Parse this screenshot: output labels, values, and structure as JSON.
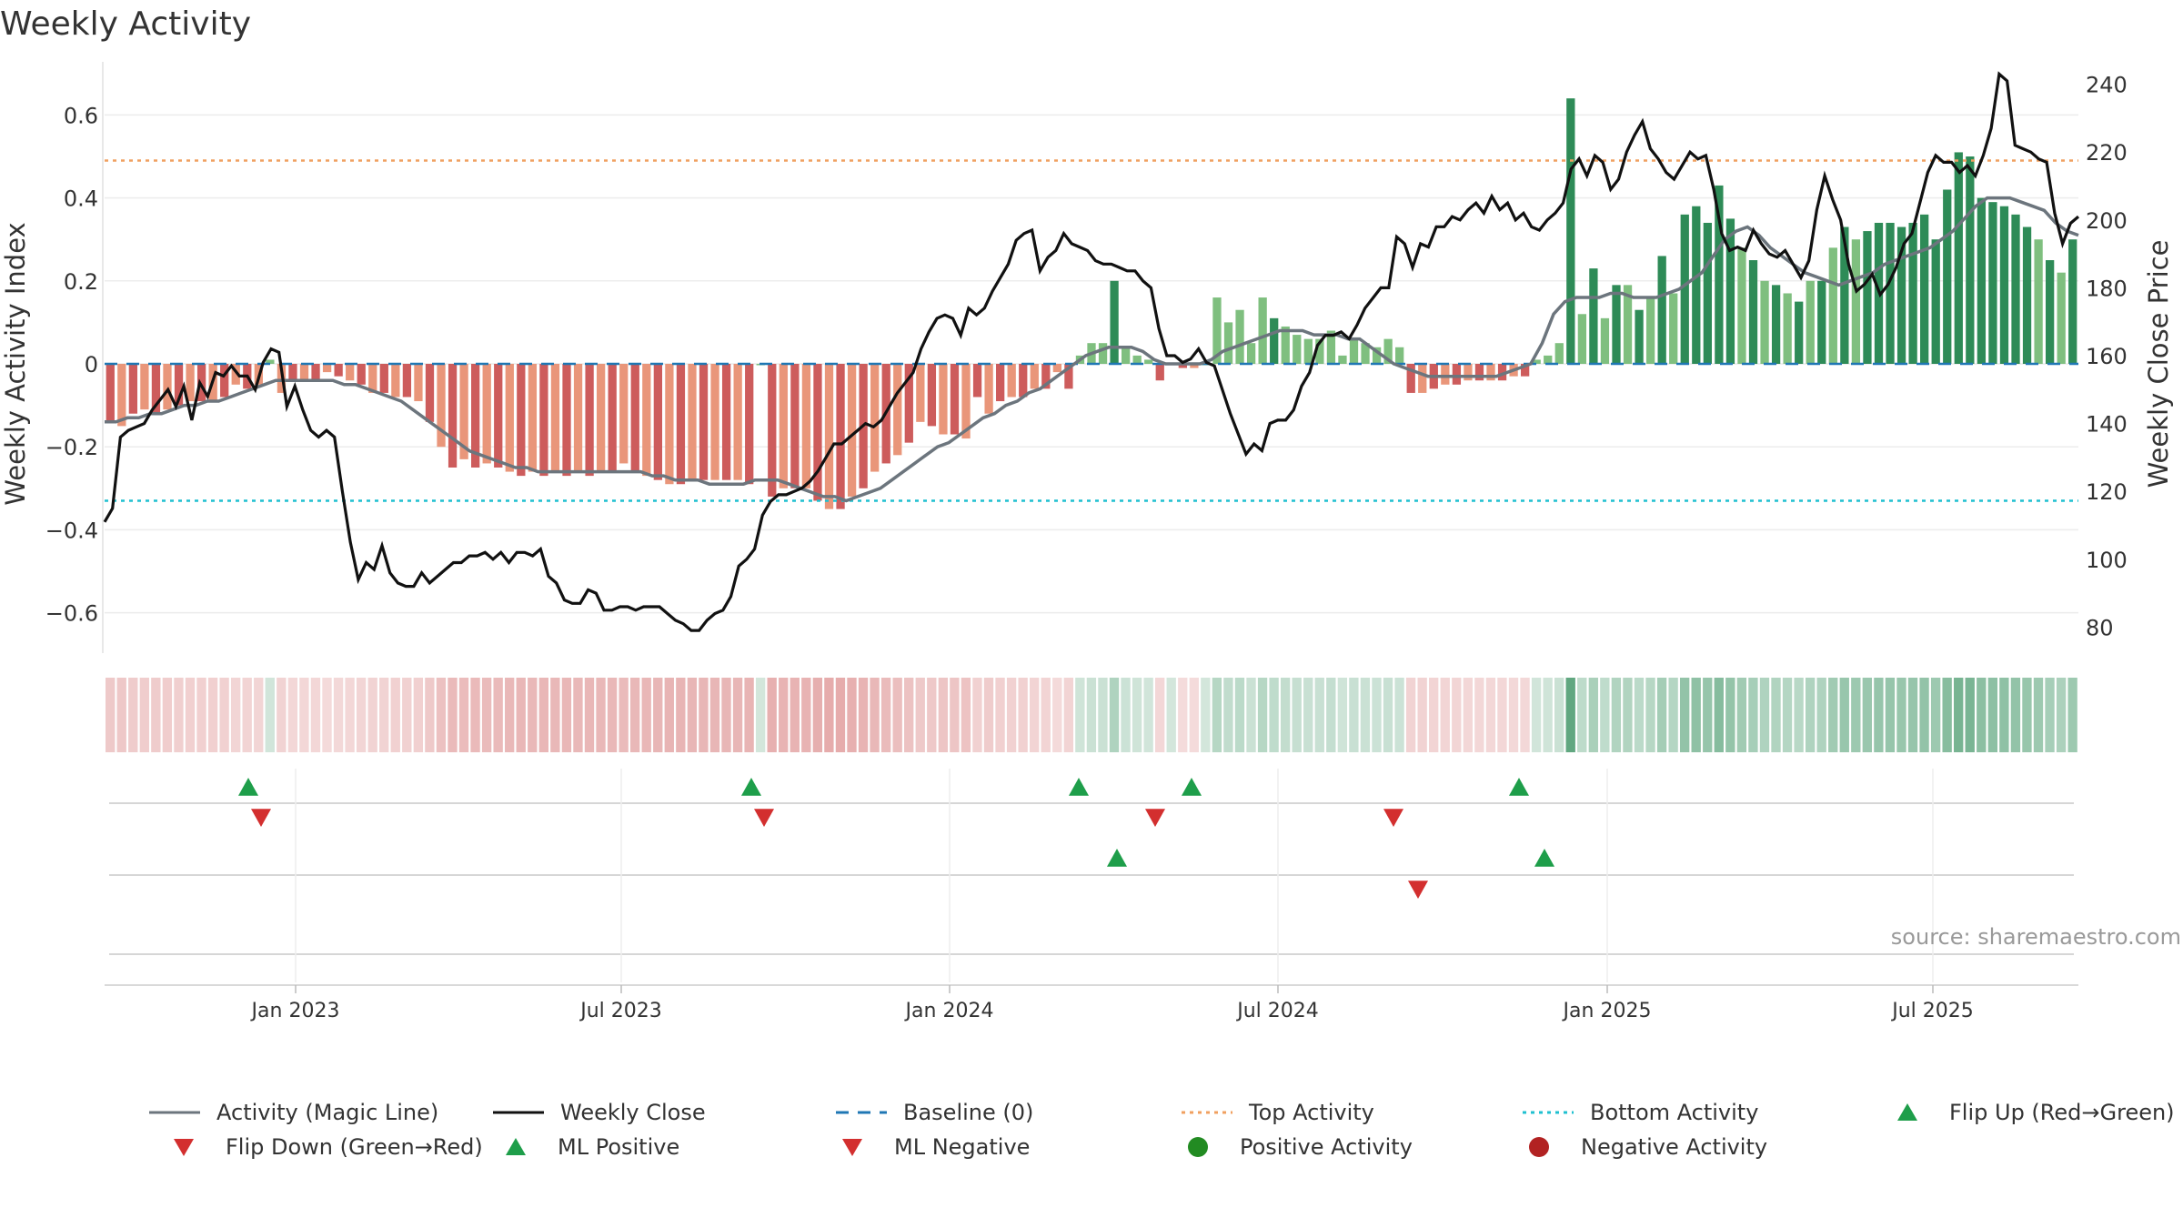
{
  "title": "Weekly Activity",
  "source": "source: sharemaestro.com",
  "colors": {
    "magic_line": "#6c757d",
    "close": "#111111",
    "baseline": "#1f77b4",
    "top": "#f0a060",
    "bottom": "#20c0d0",
    "pos_dark": "#2e8b57",
    "pos_light": "#7fbf7f",
    "neg_dark": "#cd5c5c",
    "neg_light": "#e9967a",
    "flip_up": "#1e9e4a",
    "flip_down": "#d32f2f",
    "pos_dot": "#228b22",
    "neg_dot": "#b22222"
  },
  "chart_data": {
    "type": "bar",
    "title": "Weekly Activity",
    "left_axis": {
      "label": "Weekly Activity Index",
      "ylim": [
        -0.7,
        0.7
      ],
      "ticks": [
        "0.6",
        "0.4",
        "0.2",
        "0",
        "−0.2",
        "−0.4",
        "−0.6"
      ]
    },
    "right_axis": {
      "label": "Weekly Close Price",
      "ylim": [
        70,
        250
      ],
      "ticks": [
        "240",
        "220",
        "200",
        "180",
        "160",
        "140",
        "120",
        "100",
        "80"
      ]
    },
    "x_ticks": [
      "Jan 2023",
      "Jul 2023",
      "Jan 2024",
      "Jul 2024",
      "Jan 2025",
      "Jul 2025"
    ],
    "reference_lines": {
      "top_activity": 0.49,
      "bottom_activity": -0.33,
      "baseline": 0
    },
    "grid": true,
    "series": [
      {
        "name": "Activity (Magic Line)",
        "kind": "line",
        "values": [
          -0.14,
          -0.14,
          -0.13,
          -0.13,
          -0.12,
          -0.12,
          -0.11,
          -0.1,
          -0.1,
          -0.09,
          -0.09,
          -0.08,
          -0.07,
          -0.06,
          -0.05,
          -0.04,
          -0.04,
          -0.04,
          -0.04,
          -0.04,
          -0.04,
          -0.05,
          -0.05,
          -0.06,
          -0.07,
          -0.08,
          -0.09,
          -0.11,
          -0.13,
          -0.15,
          -0.17,
          -0.19,
          -0.21,
          -0.22,
          -0.23,
          -0.24,
          -0.25,
          -0.25,
          -0.26,
          -0.26,
          -0.26,
          -0.26,
          -0.26,
          -0.26,
          -0.26,
          -0.26,
          -0.26,
          -0.26,
          -0.27,
          -0.27,
          -0.28,
          -0.28,
          -0.28,
          -0.29,
          -0.29,
          -0.29,
          -0.29,
          -0.28,
          -0.28,
          -0.28,
          -0.29,
          -0.3,
          -0.31,
          -0.32,
          -0.32,
          -0.33,
          -0.32,
          -0.31,
          -0.3,
          -0.28,
          -0.26,
          -0.24,
          -0.22,
          -0.2,
          -0.19,
          -0.17,
          -0.15,
          -0.13,
          -0.12,
          -0.1,
          -0.09,
          -0.07,
          -0.06,
          -0.04,
          -0.02,
          0.0,
          0.02,
          0.03,
          0.04,
          0.04,
          0.04,
          0.03,
          0.01,
          0.0,
          0.0,
          0.0,
          0.0,
          0.01,
          0.03,
          0.04,
          0.05,
          0.06,
          0.07,
          0.08,
          0.08,
          0.08,
          0.07,
          0.07,
          0.07,
          0.06,
          0.06,
          0.04,
          0.02,
          0.0,
          -0.01,
          -0.02,
          -0.03,
          -0.03,
          -0.03,
          -0.03,
          -0.03,
          -0.03,
          -0.03,
          -0.02,
          -0.01,
          0.0,
          0.05,
          0.12,
          0.15,
          0.16,
          0.16,
          0.16,
          0.17,
          0.17,
          0.16,
          0.16,
          0.16,
          0.17,
          0.18,
          0.2,
          0.22,
          0.26,
          0.3,
          0.32,
          0.33,
          0.31,
          0.28,
          0.26,
          0.24,
          0.22,
          0.21,
          0.2,
          0.19,
          0.2,
          0.21,
          0.22,
          0.24,
          0.25,
          0.26,
          0.27,
          0.28,
          0.3,
          0.32,
          0.35,
          0.38,
          0.4,
          0.4,
          0.4,
          0.39,
          0.38,
          0.37,
          0.34,
          0.32,
          0.31
        ]
      },
      {
        "name": "Weekly Close",
        "kind": "line",
        "values": [
          111,
          115,
          136,
          138,
          139,
          140,
          144,
          147,
          150,
          145,
          151,
          141,
          152,
          148,
          155,
          154,
          157,
          154,
          154,
          150,
          158,
          162,
          161,
          145,
          151,
          144,
          138,
          136,
          138,
          136,
          120,
          105,
          94,
          99,
          97,
          104,
          96,
          93,
          92,
          92,
          96,
          93,
          95,
          97,
          99,
          99,
          101,
          101,
          102,
          100,
          102,
          99,
          102,
          102,
          101,
          103,
          95,
          93,
          88,
          87,
          87,
          91,
          90,
          85,
          85,
          86,
          86,
          85,
          86,
          86,
          86,
          84,
          82,
          81,
          79,
          79,
          82,
          84,
          85,
          89,
          98,
          100,
          103,
          113,
          117,
          119,
          119,
          120,
          121,
          123,
          126,
          130,
          134,
          134,
          136,
          138,
          140,
          139,
          141,
          145,
          149,
          152,
          155,
          162,
          167,
          171,
          172,
          171,
          166,
          174,
          172,
          174,
          179,
          183,
          187,
          194,
          196,
          197,
          185,
          189,
          191,
          196,
          193,
          192,
          191,
          188,
          187,
          187,
          186,
          185,
          185,
          182,
          180,
          168,
          160,
          160,
          158,
          159,
          162,
          158,
          157,
          150,
          143,
          137,
          131,
          134,
          132,
          140,
          141,
          141,
          144,
          151,
          155,
          163,
          166,
          166,
          167,
          165,
          169,
          174,
          177,
          180,
          180,
          195,
          193,
          186,
          193,
          192,
          198,
          198,
          201,
          200,
          203,
          205,
          202,
          207,
          203,
          205,
          200,
          202,
          198,
          197,
          200,
          202,
          205,
          215,
          218,
          213,
          219,
          217,
          209,
          212,
          220,
          225,
          229,
          221,
          218,
          214,
          212,
          216,
          220,
          218,
          219,
          209,
          196,
          191,
          192,
          191,
          197,
          193,
          190,
          189,
          191,
          187,
          183,
          188,
          203,
          213,
          206,
          200,
          187,
          179,
          181,
          184,
          178,
          181,
          186,
          193,
          196,
          205,
          214,
          219,
          217,
          217,
          214,
          216,
          213,
          219,
          227,
          243,
          241,
          222,
          221,
          220,
          218,
          217,
          202,
          193,
          199,
          201
        ]
      },
      {
        "name": "Weekly Activity Index",
        "kind": "bar",
        "values": [
          -0.14,
          -0.15,
          -0.12,
          -0.11,
          -0.12,
          -0.11,
          -0.1,
          -0.09,
          -0.09,
          -0.09,
          -0.08,
          -0.05,
          -0.06,
          -0.05,
          0.01,
          -0.07,
          -0.04,
          -0.04,
          -0.04,
          -0.02,
          -0.03,
          -0.04,
          -0.05,
          -0.07,
          -0.07,
          -0.08,
          -0.08,
          -0.09,
          -0.14,
          -0.2,
          -0.25,
          -0.23,
          -0.25,
          -0.24,
          -0.25,
          -0.26,
          -0.27,
          -0.26,
          -0.27,
          -0.26,
          -0.27,
          -0.26,
          -0.27,
          -0.26,
          -0.26,
          -0.24,
          -0.26,
          -0.27,
          -0.28,
          -0.29,
          -0.29,
          -0.28,
          -0.28,
          -0.28,
          -0.28,
          -0.28,
          -0.29,
          0.0,
          -0.32,
          -0.3,
          -0.3,
          -0.3,
          -0.33,
          -0.35,
          -0.35,
          -0.32,
          -0.3,
          -0.26,
          -0.24,
          -0.22,
          -0.19,
          -0.14,
          -0.15,
          -0.17,
          -0.17,
          -0.18,
          -0.08,
          -0.12,
          -0.09,
          -0.08,
          -0.08,
          -0.06,
          -0.06,
          -0.02,
          -0.06,
          0.02,
          0.05,
          0.05,
          0.2,
          0.04,
          0.02,
          0.01,
          -0.04,
          0.0,
          -0.01,
          -0.01,
          0.0,
          0.16,
          0.1,
          0.13,
          0.05,
          0.16,
          0.11,
          0.09,
          0.07,
          0.06,
          0.06,
          0.08,
          0.02,
          0.06,
          0.05,
          0.04,
          0.06,
          0.04,
          -0.07,
          -0.07,
          -0.06,
          -0.05,
          -0.05,
          -0.04,
          -0.04,
          -0.04,
          -0.04,
          -0.03,
          -0.03,
          0.01,
          0.02,
          0.05,
          0.64,
          0.12,
          0.23,
          0.11,
          0.19,
          0.19,
          0.13,
          0.16,
          0.26,
          0.17,
          0.36,
          0.38,
          0.34,
          0.43,
          0.35,
          0.28,
          0.25,
          0.2,
          0.19,
          0.17,
          0.15,
          0.2,
          0.2,
          0.28,
          0.33,
          0.3,
          0.32,
          0.34,
          0.34,
          0.33,
          0.34,
          0.36,
          0.3,
          0.42,
          0.51,
          0.5,
          0.4,
          0.39,
          0.38,
          0.36,
          0.33,
          0.3,
          0.25,
          0.22,
          0.3
        ]
      },
      {
        "name": "Top Activity",
        "kind": "reference",
        "value": 0.49
      },
      {
        "name": "Bottom Activity",
        "kind": "reference",
        "value": -0.33
      },
      {
        "name": "Baseline (0)",
        "kind": "reference",
        "value": 0
      }
    ],
    "events": {
      "flip_up": [
        "Dec 2022",
        "Sep 2023",
        "Apr 2024",
        "Jun 2024",
        "Nov 2024"
      ],
      "flip_down": [
        "Dec 2022",
        "Sep 2023",
        "May 2024",
        "Sep 2024"
      ],
      "ml_positive": [
        "Apr 2024",
        "Dec 2024"
      ],
      "ml_negative": [
        "Sep 2024"
      ]
    }
  },
  "legend": [
    {
      "label": "Activity (Magic Line)",
      "icon": "solid-line-icon",
      "color": "#6c757d"
    },
    {
      "label": "Weekly Close",
      "icon": "solid-line-icon",
      "color": "#111111"
    },
    {
      "label": "Baseline (0)",
      "icon": "dashed-line-icon",
      "color": "#1f77b4"
    },
    {
      "label": "Top Activity",
      "icon": "dotted-line-icon",
      "color": "#f0a060"
    },
    {
      "label": "Bottom Activity",
      "icon": "dotted-line-icon",
      "color": "#20c0d0"
    },
    {
      "label": "Flip Up (Red→Green)",
      "icon": "triangle-up-icon",
      "color": "#1e9e4a"
    },
    {
      "label": "Flip Down (Green→Red)",
      "icon": "triangle-down-icon",
      "color": "#d32f2f"
    },
    {
      "label": "ML Positive",
      "icon": "triangle-up-icon",
      "color": "#1e9e4a"
    },
    {
      "label": "ML Negative",
      "icon": "triangle-down-icon",
      "color": "#d32f2f"
    },
    {
      "label": "Positive Activity",
      "icon": "circle-icon",
      "color": "#228b22"
    },
    {
      "label": "Negative Activity",
      "icon": "circle-icon",
      "color": "#b22222"
    }
  ]
}
